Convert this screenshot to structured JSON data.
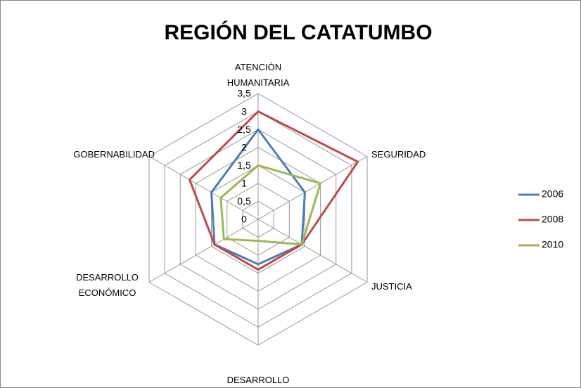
{
  "chart_data": {
    "type": "radar",
    "title": "REGIÓN DEL CATATUMBO",
    "categories": [
      "ATENCIÓN HUMANITARIA",
      "SEGURIDAD",
      "JUSTICIA",
      "DESARROLLO SOCIAL",
      "DESARROLLO ECONÓMICO",
      "GOBERNABILIDAD"
    ],
    "series": [
      {
        "name": "2006",
        "color": "#4a7ebb",
        "values": [
          2.5,
          1.5,
          1.4,
          1.25,
          1.4,
          1.5
        ]
      },
      {
        "name": "2008",
        "color": "#be4b48",
        "values": [
          3,
          3.2,
          1.4,
          1.4,
          1.4,
          2.2
        ]
      },
      {
        "name": "2010",
        "color": "#98b954",
        "values": [
          1.5,
          2,
          1.4,
          0.6,
          1.1,
          1.2
        ]
      }
    ],
    "ylim": [
      0,
      3.5
    ],
    "yticks": [
      0,
      {
        "value": 0.5,
        "label": "0,5"
      },
      1,
      {
        "value": 1.5,
        "label": "1,5"
      },
      2,
      {
        "value": 2.5,
        "label": "2,5"
      },
      3,
      {
        "value": 3.5,
        "label": "3,5"
      }
    ],
    "grid": true,
    "legend": "right"
  }
}
